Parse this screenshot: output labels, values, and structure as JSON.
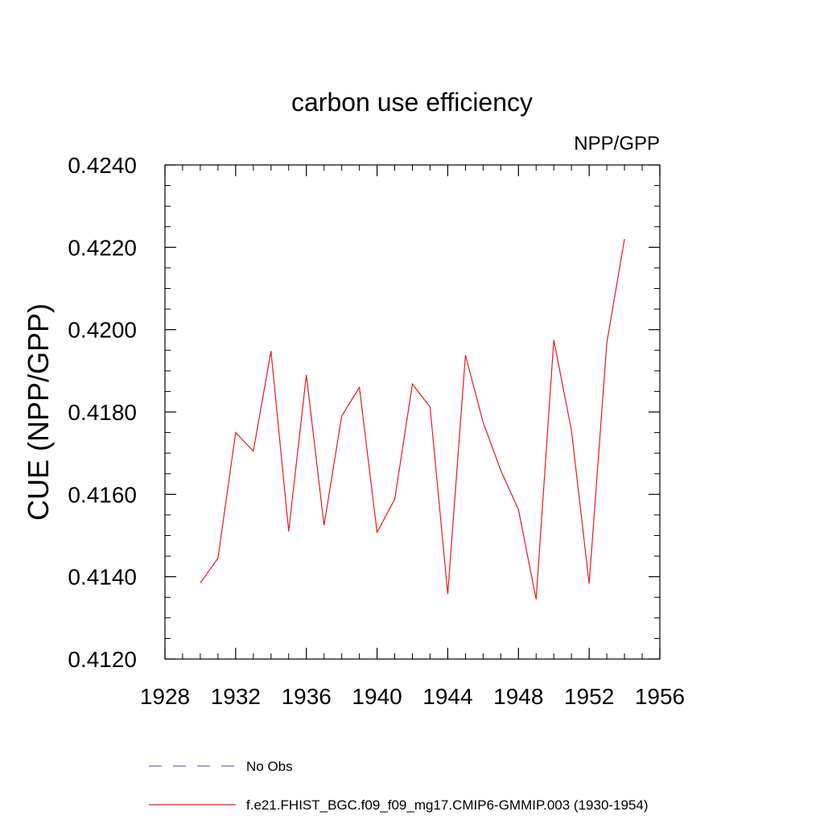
{
  "chart_data": {
    "type": "line",
    "title": "carbon use efficiency",
    "subtitle": "NPP/GPP",
    "xlabel": "",
    "ylabel": "CUE  (NPP/GPP)",
    "xlim": [
      1928,
      1956
    ],
    "ylim": [
      0.412,
      0.424
    ],
    "x_ticks": [
      "1928",
      "1932",
      "1936",
      "1940",
      "1944",
      "1948",
      "1952",
      "1956"
    ],
    "y_ticks": [
      "0.4120",
      "0.4140",
      "0.4160",
      "0.4180",
      "0.4200",
      "0.4220",
      "0.4240"
    ],
    "grid": false,
    "legend_placement": "bottom",
    "series": [
      {
        "name": "No Obs",
        "color": "#6f6fb0",
        "dash": "dashed",
        "x": [],
        "values": []
      },
      {
        "name": "f.e21.FHIST_BGC.f09_f09_mg17.CMIP6-GMMIP.003 (1930-1954)",
        "color": "#e41a1c",
        "dash": "solid",
        "x": [
          1930,
          1931,
          1932,
          1933,
          1934,
          1935,
          1936,
          1937,
          1938,
          1939,
          1940,
          1941,
          1942,
          1943,
          1944,
          1945,
          1946,
          1947,
          1948,
          1949,
          1950,
          1951,
          1952,
          1953,
          1954
        ],
        "values": [
          0.41385,
          0.41445,
          0.4175,
          0.41705,
          0.41948,
          0.4151,
          0.4189,
          0.41525,
          0.4179,
          0.4186,
          0.41508,
          0.41588,
          0.41868,
          0.41812,
          0.41358,
          0.41938,
          0.41775,
          0.41658,
          0.41563,
          0.41345,
          0.41975,
          0.41755,
          0.41383,
          0.41968,
          0.4222
        ]
      }
    ]
  }
}
